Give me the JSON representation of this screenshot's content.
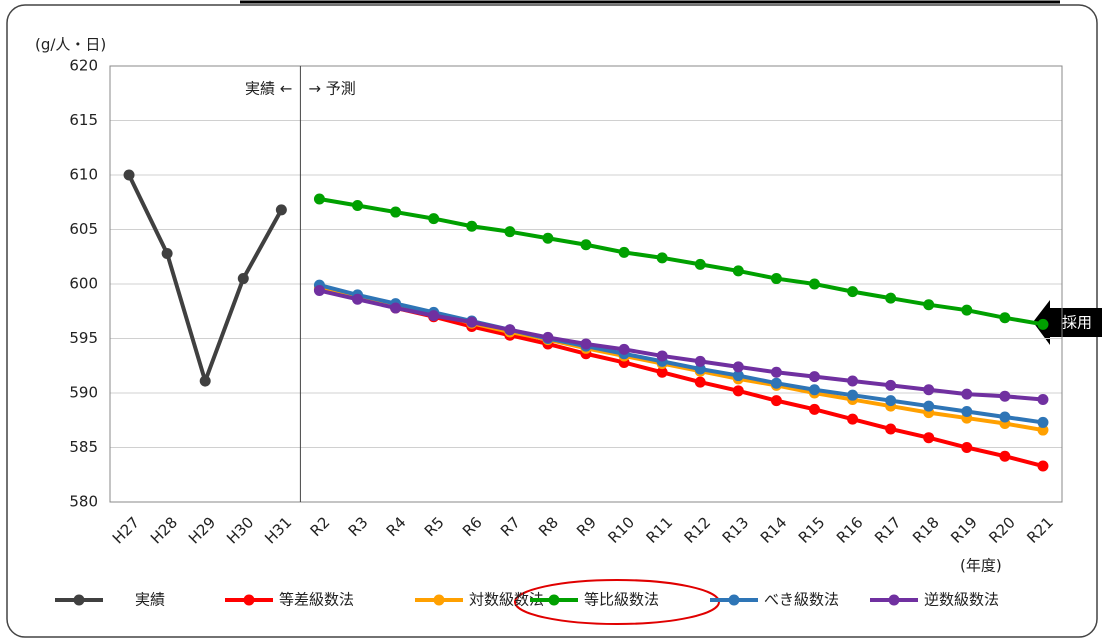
{
  "chart_data": {
    "type": "line",
    "y_unit_label": "(g/人・日)",
    "x_axis_label": "(年度)",
    "annotation_left": "実績 ←",
    "annotation_right": "→ 予測",
    "adopted_label": "採用",
    "categories": [
      "H27",
      "H28",
      "H29",
      "H30",
      "H31",
      "R2",
      "R3",
      "R4",
      "R5",
      "R6",
      "R7",
      "R8",
      "R9",
      "R10",
      "R11",
      "R12",
      "R13",
      "R14",
      "R15",
      "R16",
      "R17",
      "R18",
      "R19",
      "R20",
      "R21"
    ],
    "ylim": [
      580,
      620
    ],
    "yticks": [
      580,
      585,
      590,
      595,
      600,
      605,
      610,
      615,
      620
    ],
    "grid": true,
    "series": [
      {
        "name": "実績",
        "color": "#404040",
        "values": [
          610,
          602.8,
          591.1,
          600.5,
          606.8,
          null,
          null,
          null,
          null,
          null,
          null,
          null,
          null,
          null,
          null,
          null,
          null,
          null,
          null,
          null,
          null,
          null,
          null,
          null,
          null
        ]
      },
      {
        "name": "等差級数法",
        "color": "#ff0000",
        "values": [
          null,
          null,
          null,
          null,
          null,
          599.5,
          598.7,
          597.8,
          597.0,
          596.1,
          595.3,
          594.5,
          593.6,
          592.8,
          591.9,
          591.0,
          590.2,
          589.3,
          588.5,
          587.6,
          586.7,
          585.9,
          585.0,
          584.2,
          583.3
        ]
      },
      {
        "name": "対数級数法",
        "color": "#ffa000",
        "values": [
          null,
          null,
          null,
          null,
          null,
          599.7,
          598.9,
          598.1,
          597.3,
          596.4,
          595.6,
          594.9,
          594.1,
          593.4,
          592.7,
          592.0,
          591.3,
          590.7,
          590.0,
          589.4,
          588.8,
          588.2,
          587.7,
          587.2,
          586.6
        ]
      },
      {
        "name": "等比級数法",
        "color": "#00a000",
        "values": [
          null,
          null,
          null,
          null,
          null,
          607.8,
          607.2,
          606.6,
          606.0,
          605.3,
          604.8,
          604.2,
          603.6,
          602.9,
          602.4,
          601.8,
          601.2,
          600.5,
          600.0,
          599.3,
          598.7,
          598.1,
          597.6,
          596.9,
          596.3
        ]
      },
      {
        "name": "べき級数法",
        "color": "#2e75b6",
        "values": [
          null,
          null,
          null,
          null,
          null,
          599.9,
          599.0,
          598.2,
          597.4,
          596.6,
          595.8,
          595.0,
          594.3,
          593.6,
          592.9,
          592.2,
          591.6,
          590.9,
          590.3,
          589.8,
          589.3,
          588.8,
          588.3,
          587.8,
          587.3
        ]
      },
      {
        "name": "逆数級数法",
        "color": "#7030a0",
        "values": [
          null,
          null,
          null,
          null,
          null,
          599.4,
          598.6,
          597.8,
          597.1,
          596.5,
          595.8,
          595.1,
          594.5,
          594.0,
          593.4,
          592.9,
          592.4,
          591.9,
          591.5,
          591.1,
          590.7,
          590.3,
          589.9,
          589.7,
          589.4
        ]
      }
    ]
  }
}
